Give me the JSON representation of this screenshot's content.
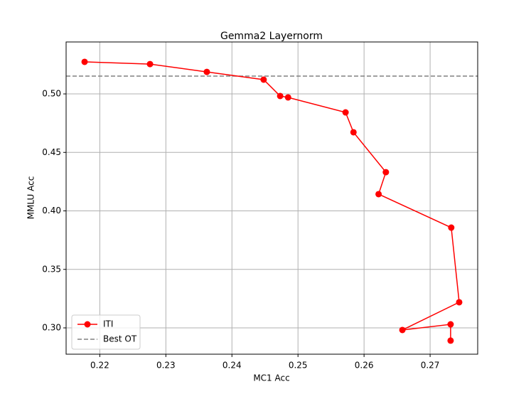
{
  "chart_data": {
    "type": "line",
    "title": "Gemma2 Layernorm",
    "x_label": "MC1 Acc",
    "y_label": "MMLU Acc",
    "series": [
      {
        "name": "ITI",
        "color": "#ff0000",
        "x": [
          0.2177,
          0.2276,
          0.2362,
          0.2448,
          0.2473,
          0.2485,
          0.2572,
          0.2584,
          0.2633,
          0.2622,
          0.2732,
          0.2744,
          0.2658,
          0.2731,
          0.2731
        ],
        "values": [
          0.5274,
          0.5255,
          0.5188,
          0.5122,
          0.4982,
          0.497,
          0.4842,
          0.4672,
          0.4331,
          0.4143,
          0.3857,
          0.3219,
          0.2982,
          0.303,
          0.2891
        ]
      }
    ],
    "reference_lines": [
      {
        "name": "Best OT",
        "value": 0.5152,
        "color": "#808080",
        "style": "dashed"
      }
    ],
    "xlim": [
      0.2149,
      0.2772
    ],
    "ylim": [
      0.2775,
      0.5444
    ],
    "xticks": [
      0.22,
      0.23,
      0.24,
      0.25,
      0.26,
      0.27
    ],
    "yticks": [
      {
        "value": 0.3,
        "label": "0.30"
      },
      0.35,
      {
        "value": 0.4,
        "label": "0.40"
      },
      0.45,
      {
        "value": 0.5,
        "label": "0.50"
      }
    ],
    "grid": true,
    "legend": "lower left"
  }
}
